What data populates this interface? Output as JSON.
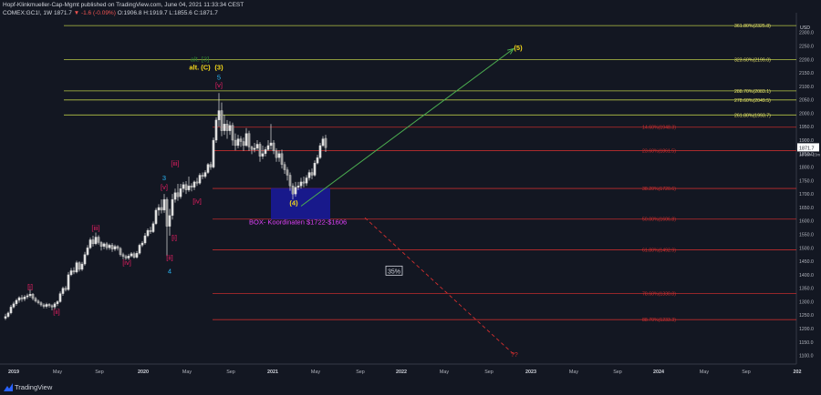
{
  "header": {
    "line1": "Hopf-Klinkmueller-Cap-Mgmt published on TradingView.com, June 04, 2021 11:33:34 CEST",
    "symbol": "COMEX:GC1!, 1W",
    "last": "1871.7",
    "change": "▼ -1.6 (-0.09%)",
    "ohlc": "O:1906.8 H:1919.7 L:1855.6 C:1871.7"
  },
  "footer": {
    "brand": "TradingView"
  },
  "colors": {
    "background": "#131722",
    "fib_yellow": "#c8d84a",
    "fib_red": "#d32f2f",
    "wave_pink": "#e91e63",
    "wave_blue": "#29b6f6",
    "target_green": "#4caf50",
    "box_blue": "#1a1a9e",
    "candle": "#e0e0e0"
  },
  "chart_data": {
    "type": "candlestick",
    "price_axis": {
      "unit": "USD",
      "ticks": [
        "2300.0",
        "2250.0",
        "2200.0",
        "2150.0",
        "2100.0",
        "2050.0",
        "2000.0",
        "1950.0",
        "1900.0",
        "1850.0",
        "1800.0",
        "1750.0",
        "1700.0",
        "1650.0",
        "1600.0",
        "1550.0",
        "1500.0",
        "1450.0",
        "1400.0",
        "1350.0",
        "1300.0",
        "1250.0",
        "1200.0",
        "1150.0",
        "1100.0"
      ],
      "last_price_label": "1871.7",
      "last_price_sub": "1d 16h 23m",
      "range": [
        1075,
        2360
      ]
    },
    "time_axis": {
      "ticks": [
        "2019",
        "May",
        "Sep",
        "2020",
        "May",
        "Sep",
        "2021",
        "May",
        "Sep",
        "2022",
        "May",
        "Sep",
        "2023",
        "May",
        "Sep",
        "2024",
        "May",
        "Sep",
        "202"
      ]
    },
    "candles": [
      {
        "x": 6,
        "o": 1238,
        "c": 1245,
        "h": 1255,
        "l": 1232
      },
      {
        "x": 9,
        "o": 1245,
        "c": 1258,
        "h": 1263,
        "l": 1240
      },
      {
        "x": 12,
        "o": 1258,
        "c": 1280,
        "h": 1288,
        "l": 1253
      },
      {
        "x": 15,
        "o": 1280,
        "c": 1292,
        "h": 1300,
        "l": 1275
      },
      {
        "x": 18,
        "o": 1292,
        "c": 1305,
        "h": 1311,
        "l": 1285
      },
      {
        "x": 21,
        "o": 1305,
        "c": 1315,
        "h": 1320,
        "l": 1296
      },
      {
        "x": 24,
        "o": 1315,
        "c": 1310,
        "h": 1325,
        "l": 1300
      },
      {
        "x": 27,
        "o": 1310,
        "c": 1318,
        "h": 1325,
        "l": 1302
      },
      {
        "x": 30,
        "o": 1318,
        "c": 1322,
        "h": 1330,
        "l": 1310
      },
      {
        "x": 33,
        "o": 1322,
        "c": 1328,
        "h": 1346,
        "l": 1315
      },
      {
        "x": 36,
        "o": 1328,
        "c": 1312,
        "h": 1332,
        "l": 1305
      },
      {
        "x": 39,
        "o": 1312,
        "c": 1302,
        "h": 1318,
        "l": 1297
      },
      {
        "x": 42,
        "o": 1302,
        "c": 1296,
        "h": 1308,
        "l": 1290
      },
      {
        "x": 45,
        "o": 1296,
        "c": 1288,
        "h": 1301,
        "l": 1282
      },
      {
        "x": 48,
        "o": 1288,
        "c": 1282,
        "h": 1294,
        "l": 1275
      },
      {
        "x": 51,
        "o": 1282,
        "c": 1290,
        "h": 1296,
        "l": 1275
      },
      {
        "x": 54,
        "o": 1290,
        "c": 1285,
        "h": 1295,
        "l": 1278
      },
      {
        "x": 57,
        "o": 1285,
        "c": 1280,
        "h": 1290,
        "l": 1268
      },
      {
        "x": 60,
        "o": 1280,
        "c": 1292,
        "h": 1298,
        "l": 1272
      },
      {
        "x": 63,
        "o": 1292,
        "c": 1300,
        "h": 1305,
        "l": 1284
      },
      {
        "x": 66,
        "o": 1300,
        "c": 1330,
        "h": 1338,
        "l": 1296
      },
      {
        "x": 69,
        "o": 1330,
        "c": 1350,
        "h": 1356,
        "l": 1322
      },
      {
        "x": 72,
        "o": 1350,
        "c": 1345,
        "h": 1358,
        "l": 1338
      },
      {
        "x": 75,
        "o": 1345,
        "c": 1400,
        "h": 1410,
        "l": 1340
      },
      {
        "x": 78,
        "o": 1400,
        "c": 1415,
        "h": 1425,
        "l": 1395
      },
      {
        "x": 81,
        "o": 1415,
        "c": 1410,
        "h": 1428,
        "l": 1402
      },
      {
        "x": 84,
        "o": 1410,
        "c": 1445,
        "h": 1452,
        "l": 1405
      },
      {
        "x": 87,
        "o": 1445,
        "c": 1420,
        "h": 1450,
        "l": 1412
      },
      {
        "x": 90,
        "o": 1420,
        "c": 1440,
        "h": 1448,
        "l": 1414
      },
      {
        "x": 93,
        "o": 1440,
        "c": 1475,
        "h": 1485,
        "l": 1434
      },
      {
        "x": 96,
        "o": 1475,
        "c": 1500,
        "h": 1510,
        "l": 1470
      },
      {
        "x": 99,
        "o": 1500,
        "c": 1530,
        "h": 1538,
        "l": 1495
      },
      {
        "x": 102,
        "o": 1530,
        "c": 1515,
        "h": 1545,
        "l": 1505
      },
      {
        "x": 105,
        "o": 1515,
        "c": 1540,
        "h": 1557,
        "l": 1510
      },
      {
        "x": 108,
        "o": 1540,
        "c": 1520,
        "h": 1547,
        "l": 1512
      },
      {
        "x": 111,
        "o": 1520,
        "c": 1505,
        "h": 1525,
        "l": 1490
      },
      {
        "x": 114,
        "o": 1505,
        "c": 1515,
        "h": 1520,
        "l": 1495
      },
      {
        "x": 117,
        "o": 1515,
        "c": 1500,
        "h": 1522,
        "l": 1492
      },
      {
        "x": 120,
        "o": 1500,
        "c": 1510,
        "h": 1516,
        "l": 1492
      },
      {
        "x": 123,
        "o": 1510,
        "c": 1495,
        "h": 1518,
        "l": 1485
      },
      {
        "x": 126,
        "o": 1495,
        "c": 1505,
        "h": 1512,
        "l": 1488
      },
      {
        "x": 129,
        "o": 1505,
        "c": 1498,
        "h": 1510,
        "l": 1490
      },
      {
        "x": 132,
        "o": 1498,
        "c": 1475,
        "h": 1503,
        "l": 1468
      },
      {
        "x": 135,
        "o": 1475,
        "c": 1468,
        "h": 1482,
        "l": 1458
      },
      {
        "x": 138,
        "o": 1468,
        "c": 1462,
        "h": 1475,
        "l": 1455
      },
      {
        "x": 141,
        "o": 1462,
        "c": 1470,
        "h": 1478,
        "l": 1455
      },
      {
        "x": 144,
        "o": 1470,
        "c": 1478,
        "h": 1484,
        "l": 1465
      },
      {
        "x": 147,
        "o": 1478,
        "c": 1465,
        "h": 1485,
        "l": 1460
      },
      {
        "x": 150,
        "o": 1465,
        "c": 1480,
        "h": 1488,
        "l": 1460
      },
      {
        "x": 153,
        "o": 1480,
        "c": 1510,
        "h": 1516,
        "l": 1475
      },
      {
        "x": 156,
        "o": 1510,
        "c": 1518,
        "h": 1525,
        "l": 1503
      },
      {
        "x": 159,
        "o": 1518,
        "c": 1545,
        "h": 1555,
        "l": 1512
      },
      {
        "x": 162,
        "o": 1545,
        "c": 1565,
        "h": 1572,
        "l": 1540
      },
      {
        "x": 165,
        "o": 1565,
        "c": 1560,
        "h": 1578,
        "l": 1552
      },
      {
        "x": 168,
        "o": 1560,
        "c": 1590,
        "h": 1598,
        "l": 1555
      },
      {
        "x": 171,
        "o": 1590,
        "c": 1640,
        "h": 1648,
        "l": 1585
      },
      {
        "x": 174,
        "o": 1640,
        "c": 1650,
        "h": 1662,
        "l": 1620
      },
      {
        "x": 177,
        "o": 1650,
        "c": 1640,
        "h": 1680,
        "l": 1628
      },
      {
        "x": 180,
        "o": 1640,
        "c": 1680,
        "h": 1700,
        "l": 1630
      },
      {
        "x": 183,
        "o": 1680,
        "c": 1580,
        "h": 1688,
        "l": 1470
      },
      {
        "x": 186,
        "o": 1580,
        "c": 1620,
        "h": 1645,
        "l": 1545
      },
      {
        "x": 189,
        "o": 1620,
        "c": 1680,
        "h": 1700,
        "l": 1605
      },
      {
        "x": 192,
        "o": 1680,
        "c": 1705,
        "h": 1720,
        "l": 1668
      },
      {
        "x": 195,
        "o": 1705,
        "c": 1690,
        "h": 1738,
        "l": 1675
      },
      {
        "x": 198,
        "o": 1690,
        "c": 1720,
        "h": 1738,
        "l": 1682
      },
      {
        "x": 201,
        "o": 1720,
        "c": 1735,
        "h": 1745,
        "l": 1706
      },
      {
        "x": 204,
        "o": 1735,
        "c": 1715,
        "h": 1748,
        "l": 1700
      },
      {
        "x": 207,
        "o": 1715,
        "c": 1730,
        "h": 1765,
        "l": 1708
      },
      {
        "x": 210,
        "o": 1730,
        "c": 1725,
        "h": 1740,
        "l": 1710
      },
      {
        "x": 213,
        "o": 1725,
        "c": 1745,
        "h": 1750,
        "l": 1715
      },
      {
        "x": 216,
        "o": 1745,
        "c": 1740,
        "h": 1760,
        "l": 1730
      },
      {
        "x": 219,
        "o": 1740,
        "c": 1770,
        "h": 1778,
        "l": 1735
      },
      {
        "x": 222,
        "o": 1770,
        "c": 1765,
        "h": 1780,
        "l": 1755
      },
      {
        "x": 225,
        "o": 1765,
        "c": 1780,
        "h": 1788,
        "l": 1758
      },
      {
        "x": 228,
        "o": 1780,
        "c": 1810,
        "h": 1815,
        "l": 1775
      },
      {
        "x": 231,
        "o": 1810,
        "c": 1800,
        "h": 1820,
        "l": 1790
      },
      {
        "x": 234,
        "o": 1800,
        "c": 1900,
        "h": 1910,
        "l": 1795
      },
      {
        "x": 237,
        "o": 1900,
        "c": 1975,
        "h": 1985,
        "l": 1890
      },
      {
        "x": 240,
        "o": 1975,
        "c": 2010,
        "h": 2075,
        "l": 1950
      },
      {
        "x": 243,
        "o": 2010,
        "c": 1935,
        "h": 2040,
        "l": 1915
      },
      {
        "x": 246,
        "o": 1935,
        "c": 1960,
        "h": 1995,
        "l": 1920
      },
      {
        "x": 249,
        "o": 1960,
        "c": 1935,
        "h": 1975,
        "l": 1905
      },
      {
        "x": 252,
        "o": 1935,
        "c": 1955,
        "h": 1970,
        "l": 1920
      },
      {
        "x": 255,
        "o": 1955,
        "c": 1900,
        "h": 1965,
        "l": 1880
      },
      {
        "x": 258,
        "o": 1900,
        "c": 1880,
        "h": 1925,
        "l": 1862
      },
      {
        "x": 261,
        "o": 1880,
        "c": 1905,
        "h": 1920,
        "l": 1870
      },
      {
        "x": 264,
        "o": 1905,
        "c": 1895,
        "h": 1915,
        "l": 1875
      },
      {
        "x": 267,
        "o": 1895,
        "c": 1880,
        "h": 1910,
        "l": 1860
      },
      {
        "x": 270,
        "o": 1880,
        "c": 1925,
        "h": 1945,
        "l": 1875
      },
      {
        "x": 273,
        "o": 1925,
        "c": 1875,
        "h": 1935,
        "l": 1860
      },
      {
        "x": 276,
        "o": 1875,
        "c": 1865,
        "h": 1880,
        "l": 1848
      },
      {
        "x": 279,
        "o": 1865,
        "c": 1870,
        "h": 1890,
        "l": 1855
      },
      {
        "x": 282,
        "o": 1870,
        "c": 1885,
        "h": 1900,
        "l": 1862
      },
      {
        "x": 285,
        "o": 1885,
        "c": 1840,
        "h": 1893,
        "l": 1820
      },
      {
        "x": 288,
        "o": 1840,
        "c": 1850,
        "h": 1880,
        "l": 1830
      },
      {
        "x": 291,
        "o": 1850,
        "c": 1865,
        "h": 1875,
        "l": 1840
      },
      {
        "x": 294,
        "o": 1865,
        "c": 1880,
        "h": 1900,
        "l": 1860
      },
      {
        "x": 297,
        "o": 1880,
        "c": 1890,
        "h": 1960,
        "l": 1865
      },
      {
        "x": 300,
        "o": 1890,
        "c": 1860,
        "h": 1900,
        "l": 1848
      },
      {
        "x": 303,
        "o": 1860,
        "c": 1835,
        "h": 1870,
        "l": 1820
      },
      {
        "x": 306,
        "o": 1835,
        "c": 1850,
        "h": 1862,
        "l": 1820
      },
      {
        "x": 309,
        "o": 1850,
        "c": 1810,
        "h": 1865,
        "l": 1795
      },
      {
        "x": 312,
        "o": 1810,
        "c": 1790,
        "h": 1820,
        "l": 1775
      },
      {
        "x": 315,
        "o": 1790,
        "c": 1770,
        "h": 1800,
        "l": 1750
      },
      {
        "x": 318,
        "o": 1770,
        "c": 1730,
        "h": 1780,
        "l": 1712
      },
      {
        "x": 321,
        "o": 1730,
        "c": 1700,
        "h": 1740,
        "l": 1680
      },
      {
        "x": 324,
        "o": 1700,
        "c": 1725,
        "h": 1745,
        "l": 1690
      },
      {
        "x": 327,
        "o": 1725,
        "c": 1730,
        "h": 1745,
        "l": 1715
      },
      {
        "x": 330,
        "o": 1730,
        "c": 1745,
        "h": 1760,
        "l": 1720
      },
      {
        "x": 333,
        "o": 1745,
        "c": 1740,
        "h": 1765,
        "l": 1725
      },
      {
        "x": 336,
        "o": 1740,
        "c": 1760,
        "h": 1770,
        "l": 1730
      },
      {
        "x": 339,
        "o": 1760,
        "c": 1780,
        "h": 1790,
        "l": 1750
      },
      {
        "x": 342,
        "o": 1780,
        "c": 1770,
        "h": 1795,
        "l": 1755
      },
      {
        "x": 345,
        "o": 1770,
        "c": 1815,
        "h": 1825,
        "l": 1765
      },
      {
        "x": 348,
        "o": 1815,
        "c": 1835,
        "h": 1845,
        "l": 1810
      },
      {
        "x": 351,
        "o": 1835,
        "c": 1880,
        "h": 1890,
        "l": 1830
      },
      {
        "x": 354,
        "o": 1880,
        "c": 1905,
        "h": 1915,
        "l": 1875
      },
      {
        "x": 357,
        "o": 1907,
        "c": 1872,
        "h": 1920,
        "l": 1856
      }
    ],
    "fib_levels": [
      {
        "label": "361.80%(2325.8)",
        "value": 2325.8,
        "color": "#c8d84a"
      },
      {
        "label": "323.60%(2199.0)",
        "value": 2199.0,
        "color": "#c8d84a"
      },
      {
        "label": "288.70%(2083.1)",
        "value": 2083.1,
        "color": "#c8d84a"
      },
      {
        "label": "278.60%(2049.5)",
        "value": 2049.5,
        "color": "#c8d84a"
      },
      {
        "label": "261.80%(1993.7)",
        "value": 1993.7,
        "color": "#c8d84a"
      },
      {
        "label": "14.60%(1948.3)",
        "value": 1948.3,
        "color": "#d32f2f"
      },
      {
        "label": "23.60%(1861.5)",
        "value": 1861.5,
        "color": "#d32f2f"
      },
      {
        "label": "38.20%(1720.6)",
        "value": 1720.6,
        "color": "#d32f2f"
      },
      {
        "label": "50.00%(1606.8)",
        "value": 1606.8,
        "color": "#d32f2f"
      },
      {
        "label": "61.80%(1492.9)",
        "value": 1492.9,
        "color": "#d32f2f"
      },
      {
        "label": "78.60%(1330.8)",
        "value": 1330.8,
        "color": "#d32f2f"
      },
      {
        "label": "88.70%(1233.3)",
        "value": 1233.3,
        "color": "#d32f2f"
      }
    ],
    "wave_labels": [
      {
        "text": "[i]",
        "x": 33,
        "price": 1348,
        "color": "#e91e63"
      },
      {
        "text": "[ii]",
        "x": 62,
        "price": 1255,
        "color": "#e91e63"
      },
      {
        "text": "[iii]",
        "x": 105,
        "price": 1565,
        "color": "#e91e63"
      },
      {
        "text": "[iv]",
        "x": 139,
        "price": 1437,
        "color": "#e91e63"
      },
      {
        "text": "3",
        "x": 180,
        "price": 1752,
        "color": "#29b6f6"
      },
      {
        "text": "[iii]",
        "x": 192,
        "price": 1805,
        "color": "#e91e63"
      },
      {
        "text": "[v]",
        "x": 180,
        "price": 1718,
        "color": "#e91e63"
      },
      {
        "text": "[iv]",
        "x": 216,
        "price": 1665,
        "color": "#e91e63"
      },
      {
        "text": "[i]",
        "x": 191,
        "price": 1530,
        "color": "#e91e63"
      },
      {
        "text": "[ii]",
        "x": 186,
        "price": 1455,
        "color": "#e91e63"
      },
      {
        "text": "4",
        "x": 186,
        "price": 1405,
        "color": "#29b6f6"
      },
      {
        "text": "5",
        "x": 240,
        "price": 2125,
        "color": "#29b6f6"
      },
      {
        "text": "[v]",
        "x": 240,
        "price": 2097,
        "color": "#e91e63"
      },
      {
        "text": "alt. (C)",
        "x": 219,
        "price": 2162,
        "color": "#f5d91a"
      },
      {
        "text": "(3)",
        "x": 240,
        "price": 2162,
        "color": "#f5d91a"
      },
      {
        "text": "alt. [3]",
        "x": 219,
        "price": 2192,
        "color": "#2e7d32"
      },
      {
        "text": "(4)",
        "x": 322,
        "price": 1658,
        "color": "#f5d91a"
      },
      {
        "text": "(5)",
        "x": 568,
        "price": 2235,
        "color": "#f5d91a"
      },
      {
        "text": "BOX- Koordinaten $1722-$1606",
        "x": 273,
        "price": 1587,
        "color": "#e040fb"
      }
    ],
    "box": {
      "x1": 297,
      "x2": 362,
      "top": 1722,
      "bottom": 1606,
      "color": "#1a1a9e"
    },
    "projection_green": {
      "x1": 330,
      "p1": 1655,
      "x2": 563,
      "p2": 2240
    },
    "projection_red": {
      "x1": 400,
      "p1": 1612,
      "x2": 563,
      "p2": 1105
    },
    "red_target_label": {
      "text": "??",
      "x": 560,
      "price": 1095
    },
    "percent_box": {
      "text": "35%",
      "x": 432,
      "price": 1412
    }
  }
}
